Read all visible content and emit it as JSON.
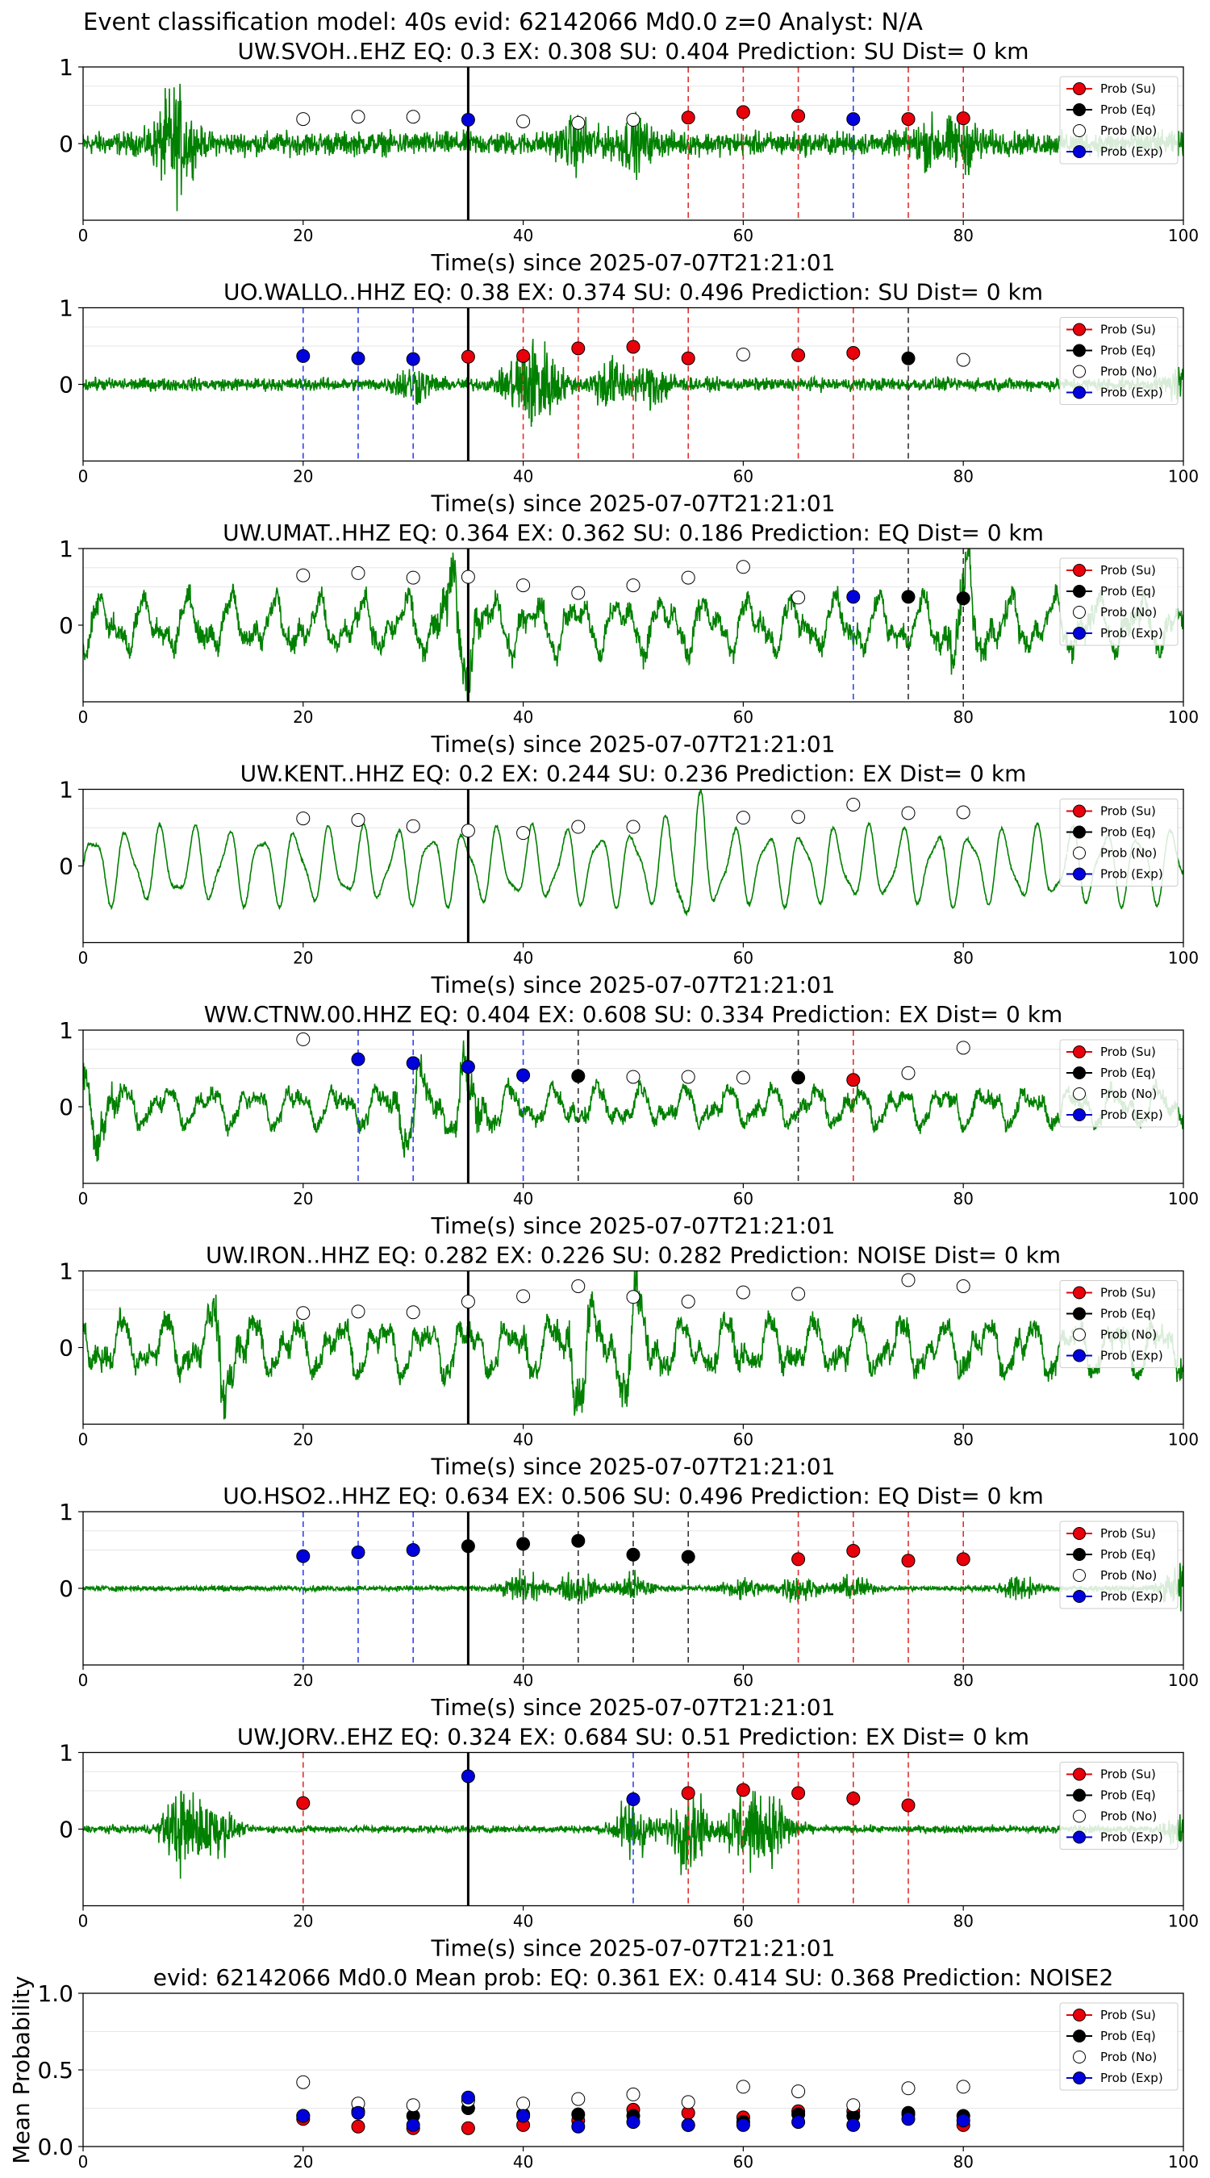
{
  "figure": {
    "suptitle": "Event classification model: 40s evid: 62142066 Md0.0 z=0 Analyst: N/A"
  },
  "legend_labels": [
    "Prob (Su)",
    "Prob (Eq)",
    "Prob (No)",
    "Prob (Exp)"
  ],
  "colors": {
    "waveform": "#008000",
    "su": "#e8000b",
    "eq": "#000000",
    "no": "#ffffff",
    "exp": "#0000dd",
    "su_line": "#e03030",
    "eq_line": "#333333",
    "exp_line": "#3344ee"
  },
  "chart_data": [
    {
      "type": "line",
      "title": "UW.SVOH..EHZ   EQ: 0.3  EX: 0.308  SU: 0.404   Prediction: SU    Dist= 0 km",
      "xlabel": "Time(s) since 2025-07-07T21:21:01",
      "xlim": [
        0,
        100
      ],
      "ylim": [
        -1,
        1
      ],
      "xticks": [
        "0",
        "20",
        "40",
        "60",
        "80",
        "100"
      ],
      "yticks": [
        "0",
        "1"
      ],
      "waveform": {
        "amplitude": 0.22,
        "style": "noisy",
        "bursts": [
          [
            8.3,
            0.9
          ],
          [
            45,
            0.35
          ],
          [
            50,
            0.35
          ],
          [
            77,
            0.3
          ],
          [
            80,
            0.35
          ]
        ]
      },
      "points": [
        {
          "x": 20,
          "y": 0.32,
          "class": "no"
        },
        {
          "x": 25,
          "y": 0.35,
          "class": "no"
        },
        {
          "x": 30,
          "y": 0.35,
          "class": "no"
        },
        {
          "x": 35,
          "y": 0.31,
          "class": "exp"
        },
        {
          "x": 40,
          "y": 0.29,
          "class": "no"
        },
        {
          "x": 45,
          "y": 0.27,
          "class": "no"
        },
        {
          "x": 50,
          "y": 0.31,
          "class": "no"
        },
        {
          "x": 55,
          "y": 0.34,
          "class": "su"
        },
        {
          "x": 60,
          "y": 0.41,
          "class": "su"
        },
        {
          "x": 65,
          "y": 0.36,
          "class": "su"
        },
        {
          "x": 70,
          "y": 0.32,
          "class": "exp"
        },
        {
          "x": 75,
          "y": 0.32,
          "class": "su"
        },
        {
          "x": 80,
          "y": 0.33,
          "class": "su"
        }
      ]
    },
    {
      "type": "line",
      "title": "UO.WALLO..HHZ   EQ: 0.38  EX: 0.374  SU: 0.496   Prediction: SU    Dist= 0 km",
      "xlabel": "Time(s) since 2025-07-07T21:21:01",
      "xlim": [
        0,
        100
      ],
      "ylim": [
        -1,
        1
      ],
      "xticks": [
        "0",
        "20",
        "40",
        "60",
        "80",
        "100"
      ],
      "yticks": [
        "0",
        "1"
      ],
      "waveform": {
        "amplitude": 0.12,
        "style": "noisy",
        "bursts": [
          [
            30,
            0.3
          ],
          [
            40,
            0.6
          ],
          [
            42,
            0.55
          ],
          [
            48,
            0.45
          ],
          [
            52,
            0.35
          ],
          [
            100,
            0.3
          ]
        ]
      },
      "points": [
        {
          "x": 20,
          "y": 0.37,
          "class": "exp"
        },
        {
          "x": 25,
          "y": 0.34,
          "class": "exp"
        },
        {
          "x": 30,
          "y": 0.33,
          "class": "exp"
        },
        {
          "x": 35,
          "y": 0.36,
          "class": "su"
        },
        {
          "x": 40,
          "y": 0.37,
          "class": "su"
        },
        {
          "x": 45,
          "y": 0.47,
          "class": "su"
        },
        {
          "x": 50,
          "y": 0.49,
          "class": "su"
        },
        {
          "x": 55,
          "y": 0.34,
          "class": "su"
        },
        {
          "x": 60,
          "y": 0.39,
          "class": "no"
        },
        {
          "x": 65,
          "y": 0.38,
          "class": "su"
        },
        {
          "x": 70,
          "y": 0.41,
          "class": "su"
        },
        {
          "x": 75,
          "y": 0.34,
          "class": "eq"
        },
        {
          "x": 80,
          "y": 0.32,
          "class": "no"
        }
      ]
    },
    {
      "type": "line",
      "title": "UW.UMAT..HHZ   EQ: 0.364  EX: 0.362  SU: 0.186   Prediction: EQ    Dist= 0 km",
      "xlabel": "Time(s) since 2025-07-07T21:21:01",
      "xlim": [
        0,
        100
      ],
      "ylim": [
        -1,
        1
      ],
      "xticks": [
        "0",
        "20",
        "40",
        "60",
        "80",
        "100"
      ],
      "yticks": [
        "0",
        "1"
      ],
      "waveform": {
        "amplitude": 0.45,
        "style": "wavy",
        "bursts": [
          [
            34,
            0.85
          ],
          [
            80,
            0.6
          ]
        ]
      },
      "points": [
        {
          "x": 20,
          "y": 0.65,
          "class": "no"
        },
        {
          "x": 25,
          "y": 0.68,
          "class": "no"
        },
        {
          "x": 30,
          "y": 0.62,
          "class": "no"
        },
        {
          "x": 35,
          "y": 0.63,
          "class": "no"
        },
        {
          "x": 40,
          "y": 0.52,
          "class": "no"
        },
        {
          "x": 45,
          "y": 0.42,
          "class": "no"
        },
        {
          "x": 50,
          "y": 0.52,
          "class": "no"
        },
        {
          "x": 55,
          "y": 0.62,
          "class": "no"
        },
        {
          "x": 60,
          "y": 0.76,
          "class": "no"
        },
        {
          "x": 65,
          "y": 0.36,
          "class": "no"
        },
        {
          "x": 70,
          "y": 0.37,
          "class": "exp"
        },
        {
          "x": 75,
          "y": 0.37,
          "class": "eq"
        },
        {
          "x": 80,
          "y": 0.35,
          "class": "eq"
        }
      ]
    },
    {
      "type": "line",
      "title": "UW.KENT..HHZ   EQ: 0.2  EX: 0.244  SU: 0.236   Prediction: EX    Dist= 0 km",
      "xlabel": "Time(s) since 2025-07-07T21:21:01",
      "xlim": [
        0,
        100
      ],
      "ylim": [
        -1,
        1
      ],
      "xticks": [
        "0",
        "20",
        "40",
        "60",
        "80",
        "100"
      ],
      "yticks": [
        "0",
        "1"
      ],
      "waveform": {
        "amplitude": 0.55,
        "style": "smooth",
        "bursts": [
          [
            55,
            0.9
          ]
        ]
      },
      "points": [
        {
          "x": 20,
          "y": 0.62,
          "class": "no"
        },
        {
          "x": 25,
          "y": 0.6,
          "class": "no"
        },
        {
          "x": 30,
          "y": 0.52,
          "class": "no"
        },
        {
          "x": 35,
          "y": 0.46,
          "class": "no"
        },
        {
          "x": 40,
          "y": 0.43,
          "class": "no"
        },
        {
          "x": 45,
          "y": 0.51,
          "class": "no"
        },
        {
          "x": 50,
          "y": 0.51,
          "class": "no"
        },
        {
          "x": 60,
          "y": 0.63,
          "class": "no"
        },
        {
          "x": 65,
          "y": 0.64,
          "class": "no"
        },
        {
          "x": 70,
          "y": 0.8,
          "class": "no"
        },
        {
          "x": 75,
          "y": 0.69,
          "class": "no"
        },
        {
          "x": 80,
          "y": 0.7,
          "class": "no"
        }
      ]
    },
    {
      "type": "line",
      "title": "WW.CTNW.00.HHZ   EQ: 0.404  EX: 0.608  SU: 0.334   Prediction: EX    Dist= 0 km",
      "xlabel": "Time(s) since 2025-07-07T21:21:01",
      "xlim": [
        0,
        100
      ],
      "ylim": [
        -1,
        1
      ],
      "xticks": [
        "0",
        "20",
        "40",
        "60",
        "80",
        "100"
      ],
      "yticks": [
        "0",
        "1"
      ],
      "waveform": {
        "amplitude": 0.32,
        "style": "wavy",
        "bursts": [
          [
            1,
            0.9
          ],
          [
            30,
            0.5
          ],
          [
            35,
            0.5
          ]
        ]
      },
      "points": [
        {
          "x": 20,
          "y": 0.88,
          "class": "no"
        },
        {
          "x": 25,
          "y": 0.62,
          "class": "exp"
        },
        {
          "x": 30,
          "y": 0.57,
          "class": "exp"
        },
        {
          "x": 35,
          "y": 0.52,
          "class": "exp"
        },
        {
          "x": 40,
          "y": 0.41,
          "class": "exp"
        },
        {
          "x": 45,
          "y": 0.4,
          "class": "eq"
        },
        {
          "x": 50,
          "y": 0.39,
          "class": "no"
        },
        {
          "x": 55,
          "y": 0.39,
          "class": "no"
        },
        {
          "x": 60,
          "y": 0.38,
          "class": "no"
        },
        {
          "x": 65,
          "y": 0.38,
          "class": "eq"
        },
        {
          "x": 70,
          "y": 0.35,
          "class": "su"
        },
        {
          "x": 75,
          "y": 0.44,
          "class": "no"
        },
        {
          "x": 80,
          "y": 0.77,
          "class": "no"
        }
      ]
    },
    {
      "type": "line",
      "title": "UW.IRON..HHZ   EQ: 0.282  EX: 0.226  SU: 0.282   Prediction: NOISE    Dist= 0 km",
      "xlabel": "Time(s) since 2025-07-07T21:21:01",
      "xlim": [
        0,
        100
      ],
      "ylim": [
        -1,
        1
      ],
      "xticks": [
        "0",
        "20",
        "40",
        "60",
        "80",
        "100"
      ],
      "yticks": [
        "0",
        "1"
      ],
      "waveform": {
        "amplitude": 0.45,
        "style": "wavy",
        "bursts": [
          [
            13,
            0.5
          ],
          [
            45,
            0.55
          ],
          [
            50,
            0.6
          ]
        ]
      },
      "points": [
        {
          "x": 20,
          "y": 0.45,
          "class": "no"
        },
        {
          "x": 25,
          "y": 0.47,
          "class": "no"
        },
        {
          "x": 30,
          "y": 0.46,
          "class": "no"
        },
        {
          "x": 35,
          "y": 0.6,
          "class": "no"
        },
        {
          "x": 40,
          "y": 0.67,
          "class": "no"
        },
        {
          "x": 45,
          "y": 0.8,
          "class": "no"
        },
        {
          "x": 50,
          "y": 0.66,
          "class": "no"
        },
        {
          "x": 55,
          "y": 0.6,
          "class": "no"
        },
        {
          "x": 60,
          "y": 0.72,
          "class": "no"
        },
        {
          "x": 65,
          "y": 0.7,
          "class": "no"
        },
        {
          "x": 75,
          "y": 0.88,
          "class": "no"
        },
        {
          "x": 80,
          "y": 0.8,
          "class": "no"
        }
      ]
    },
    {
      "type": "line",
      "title": "UO.HSO2..HHZ   EQ: 0.634  EX: 0.506  SU: 0.496   Prediction: EQ    Dist= 0 km",
      "xlabel": "Time(s) since 2025-07-07T21:21:01",
      "xlim": [
        0,
        100
      ],
      "ylim": [
        -1,
        1
      ],
      "xticks": [
        "0",
        "20",
        "40",
        "60",
        "80",
        "100"
      ],
      "yticks": [
        "0",
        "1"
      ],
      "waveform": {
        "amplitude": 0.05,
        "style": "noisy",
        "bursts": [
          [
            40,
            0.3
          ],
          [
            45,
            0.3
          ],
          [
            50,
            0.25
          ],
          [
            60,
            0.2
          ],
          [
            65,
            0.25
          ],
          [
            70,
            0.2
          ],
          [
            85,
            0.2
          ],
          [
            100,
            0.5
          ]
        ]
      },
      "points": [
        {
          "x": 20,
          "y": 0.42,
          "class": "exp"
        },
        {
          "x": 25,
          "y": 0.47,
          "class": "exp"
        },
        {
          "x": 30,
          "y": 0.5,
          "class": "exp"
        },
        {
          "x": 35,
          "y": 0.55,
          "class": "eq"
        },
        {
          "x": 40,
          "y": 0.58,
          "class": "eq"
        },
        {
          "x": 45,
          "y": 0.62,
          "class": "eq"
        },
        {
          "x": 50,
          "y": 0.44,
          "class": "eq"
        },
        {
          "x": 55,
          "y": 0.41,
          "class": "eq"
        },
        {
          "x": 65,
          "y": 0.38,
          "class": "su"
        },
        {
          "x": 70,
          "y": 0.49,
          "class": "su"
        },
        {
          "x": 75,
          "y": 0.36,
          "class": "su"
        },
        {
          "x": 80,
          "y": 0.38,
          "class": "su"
        }
      ]
    },
    {
      "type": "line",
      "title": "UW.JORV..EHZ   EQ: 0.324  EX: 0.684  SU: 0.51   Prediction: EX    Dist= 0 km",
      "xlabel": "Time(s) since 2025-07-07T21:21:01",
      "xlim": [
        0,
        100
      ],
      "ylim": [
        -1,
        1
      ],
      "xticks": [
        "0",
        "20",
        "40",
        "60",
        "80",
        "100"
      ],
      "yticks": [
        "0",
        "1"
      ],
      "waveform": {
        "amplitude": 0.07,
        "style": "noisy",
        "bursts": [
          [
            9,
            0.75
          ],
          [
            12,
            0.5
          ],
          [
            50,
            0.6
          ],
          [
            55,
            0.75
          ],
          [
            60,
            0.7
          ],
          [
            63,
            0.55
          ],
          [
            100,
            0.3
          ]
        ]
      },
      "points": [
        {
          "x": 20,
          "y": 0.34,
          "class": "su"
        },
        {
          "x": 35,
          "y": 0.69,
          "class": "exp"
        },
        {
          "x": 50,
          "y": 0.39,
          "class": "exp"
        },
        {
          "x": 55,
          "y": 0.47,
          "class": "su"
        },
        {
          "x": 60,
          "y": 0.51,
          "class": "su"
        },
        {
          "x": 65,
          "y": 0.47,
          "class": "su"
        },
        {
          "x": 70,
          "y": 0.4,
          "class": "su"
        },
        {
          "x": 75,
          "y": 0.31,
          "class": "su"
        }
      ]
    },
    {
      "type": "scatter",
      "title": "evid: 62142066  Md0.0   Mean prob:    EQ: 0.361  EX: 0.414  SU: 0.368   Prediction: NOISE2",
      "ylabel": "Mean Probability",
      "xlim": [
        0,
        100
      ],
      "ylim": [
        0,
        1
      ],
      "xticks": [
        "0",
        "20",
        "40",
        "60",
        "80",
        "100"
      ],
      "yticks": [
        "0.0",
        "0.5",
        "1.0"
      ],
      "x": [
        20,
        25,
        30,
        35,
        40,
        45,
        50,
        55,
        60,
        65,
        70,
        75,
        80
      ],
      "series": [
        {
          "name": "Prob (Su)",
          "key": "su",
          "values": [
            0.18,
            0.13,
            0.12,
            0.12,
            0.14,
            0.17,
            0.24,
            0.22,
            0.19,
            0.23,
            0.23,
            0.21,
            0.14
          ]
        },
        {
          "name": "Prob (Eq)",
          "key": "eq",
          "values": [
            0.2,
            0.23,
            0.2,
            0.25,
            0.21,
            0.21,
            0.2,
            0.14,
            0.16,
            0.21,
            0.2,
            0.22,
            0.2
          ]
        },
        {
          "name": "Prob (No)",
          "key": "no",
          "values": [
            0.42,
            0.28,
            0.27,
            0.3,
            0.28,
            0.31,
            0.34,
            0.29,
            0.39,
            0.36,
            0.27,
            0.38,
            0.39
          ]
        },
        {
          "name": "Prob (Exp)",
          "key": "exp",
          "values": [
            0.2,
            0.22,
            0.14,
            0.32,
            0.2,
            0.13,
            0.16,
            0.14,
            0.14,
            0.16,
            0.14,
            0.18,
            0.17
          ]
        }
      ]
    }
  ]
}
